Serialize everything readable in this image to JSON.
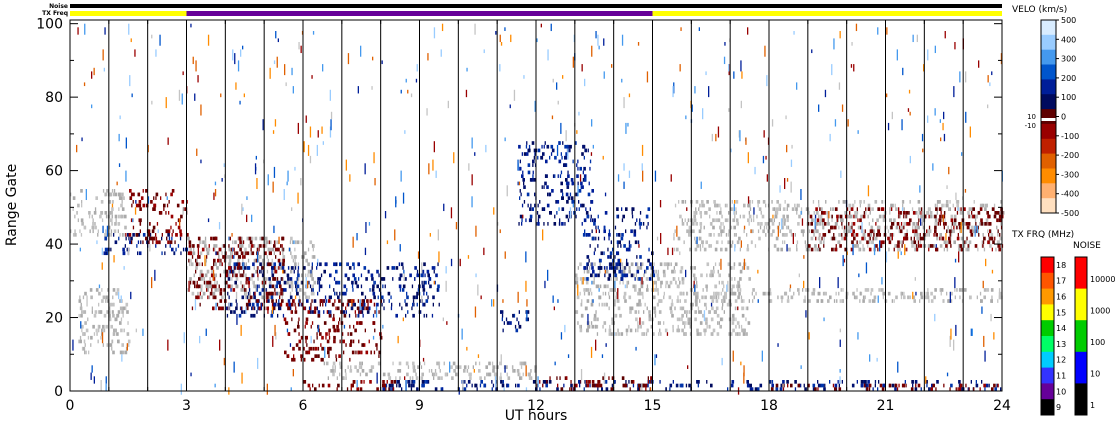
{
  "chart_data": {
    "type": "heatmap",
    "title": "",
    "xlabel": "UT hours",
    "ylabel": "Range Gate",
    "xlim": [
      0,
      24
    ],
    "ylim": [
      0,
      101
    ],
    "xticks": [
      0,
      3,
      6,
      9,
      12,
      15,
      18,
      21,
      24
    ],
    "xtick_labels": [
      "0",
      "3",
      "6",
      "9",
      "12",
      "15",
      "18",
      "21",
      "24"
    ],
    "yticks": [
      0,
      20,
      40,
      60,
      80,
      100
    ],
    "ytick_labels": [
      "0",
      "20",
      "40",
      "60",
      "80",
      "100"
    ],
    "grid": false,
    "vertical_lines_every_hours": 1,
    "top_bars": {
      "noise_label": "Noise",
      "freq_label": "TX Freq",
      "noise_color": "#000000",
      "freq_segments": [
        {
          "start": 0,
          "end": 3,
          "color": "#ffff00"
        },
        {
          "start": 3,
          "end": 15,
          "color": "#660099"
        },
        {
          "start": 15,
          "end": 24,
          "color": "#ffff00"
        }
      ]
    },
    "velocity_colorbar": {
      "title": "VELO (km/s)",
      "tick_labels": [
        "500",
        "400",
        "300",
        "200",
        "100",
        "0",
        "-100",
        "-200",
        "-300",
        "-400",
        "-500"
      ],
      "threshold_labels": [
        "10",
        "-10"
      ],
      "colors": [
        "#d8ecff",
        "#99ccff",
        "#4499ee",
        "#0055cc",
        "#001e99",
        "#000a5e",
        "#5e0000",
        "#990000",
        "#c02000",
        "#e06000",
        "#ff8c00",
        "#ffb070",
        "#ffe0c0"
      ]
    },
    "freq_colorbar": {
      "title": "TX FRQ (MHz)",
      "tick_labels": [
        "18",
        "17",
        "16",
        "15",
        "14",
        "13",
        "12",
        "11",
        "10",
        "9"
      ],
      "colors": [
        "#ff0000",
        "#ff5500",
        "#ff9900",
        "#ffff00",
        "#00cc00",
        "#00ff66",
        "#00ccff",
        "#3333ff",
        "#660099",
        "#000000"
      ]
    },
    "noise_colorbar": {
      "title": "NOISE",
      "tick_labels": [
        "10000",
        "1000",
        "100",
        "10",
        "1"
      ],
      "colors": [
        "#ff0000",
        "#ffff00",
        "#00cc00",
        "#0000ff",
        "#000000"
      ]
    },
    "scatter_regions": [
      {
        "name": "ground",
        "t0": 0,
        "t1": 1.4,
        "g0": 42,
        "g1": 55
      },
      {
        "name": "ground",
        "t0": 0.2,
        "t1": 1.5,
        "g0": 10,
        "g1": 28
      },
      {
        "name": "ground",
        "t0": 3,
        "t1": 6.3,
        "g0": 25,
        "g1": 42
      },
      {
        "name": "ground",
        "t0": 6.5,
        "t1": 12,
        "g0": 3,
        "g1": 8
      },
      {
        "name": "ground",
        "t0": 13,
        "t1": 17.5,
        "g0": 15,
        "g1": 35
      },
      {
        "name": "ground",
        "t0": 15.5,
        "t1": 24,
        "g0": 38,
        "g1": 52
      },
      {
        "name": "ground",
        "t0": 16,
        "t1": 24,
        "g0": 24,
        "g1": 28
      },
      {
        "name": "positive",
        "t0": 0.8,
        "t1": 3,
        "g0": 37,
        "g1": 43
      },
      {
        "name": "positive",
        "t0": 4,
        "t1": 9.5,
        "g0": 20,
        "g1": 35
      },
      {
        "name": "positive",
        "t0": 11,
        "t1": 11.8,
        "g0": 16,
        "g1": 22
      },
      {
        "name": "positive",
        "t0": 11.5,
        "t1": 13.5,
        "g0": 45,
        "g1": 68
      },
      {
        "name": "positive",
        "t0": 13.2,
        "t1": 15,
        "g0": 30,
        "g1": 50
      },
      {
        "name": "positive",
        "t0": 8,
        "t1": 24,
        "g0": 0,
        "g1": 3
      },
      {
        "name": "negative",
        "t0": 1.5,
        "t1": 3,
        "g0": 40,
        "g1": 55
      },
      {
        "name": "negative",
        "t0": 3,
        "t1": 5.5,
        "g0": 22,
        "g1": 42
      },
      {
        "name": "negative",
        "t0": 5.5,
        "t1": 8,
        "g0": 8,
        "g1": 25
      },
      {
        "name": "negative",
        "t0": 6,
        "t1": 8.5,
        "g0": 0,
        "g1": 3
      },
      {
        "name": "negative",
        "t0": 12,
        "t1": 15,
        "g0": 0,
        "g1": 4
      },
      {
        "name": "negative",
        "t0": 18,
        "t1": 24,
        "g0": 0,
        "g1": 2
      },
      {
        "name": "negative",
        "t0": 19,
        "t1": 24,
        "g0": 38,
        "g1": 50
      }
    ]
  }
}
